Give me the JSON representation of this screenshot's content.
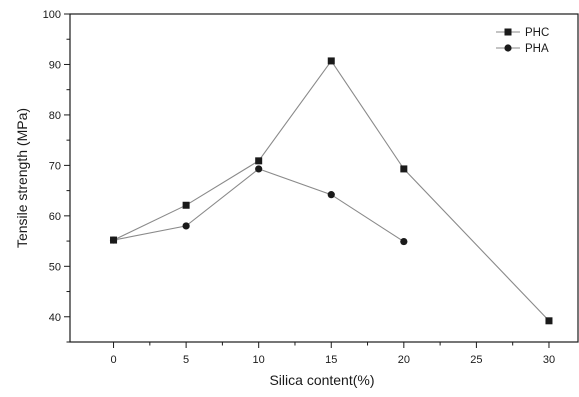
{
  "chart_data": {
    "type": "line",
    "title": "",
    "xlabel": "Silica content(%)",
    "ylabel": "Tensile strength (MPa)",
    "xlim": [
      -3,
      32
    ],
    "ylim": [
      35,
      100
    ],
    "xticks": [
      0,
      5,
      10,
      15,
      20,
      25,
      30
    ],
    "yticks": [
      40,
      50,
      60,
      70,
      80,
      90,
      100
    ],
    "grid": false,
    "legend_position": "top-right",
    "series": [
      {
        "name": "PHC",
        "marker": "square",
        "x": [
          0,
          5,
          10,
          15,
          20,
          30
        ],
        "values": [
          55.2,
          62.1,
          70.9,
          90.7,
          69.3,
          39.2
        ]
      },
      {
        "name": "PHA",
        "marker": "circle",
        "x": [
          0,
          5,
          10,
          15,
          20
        ],
        "values": [
          55.2,
          58.0,
          69.3,
          64.2,
          54.9
        ]
      }
    ],
    "colors": {
      "line": "#8a8a8a",
      "marker": "#1a1a1a",
      "axis": "#1a1a1a"
    }
  }
}
